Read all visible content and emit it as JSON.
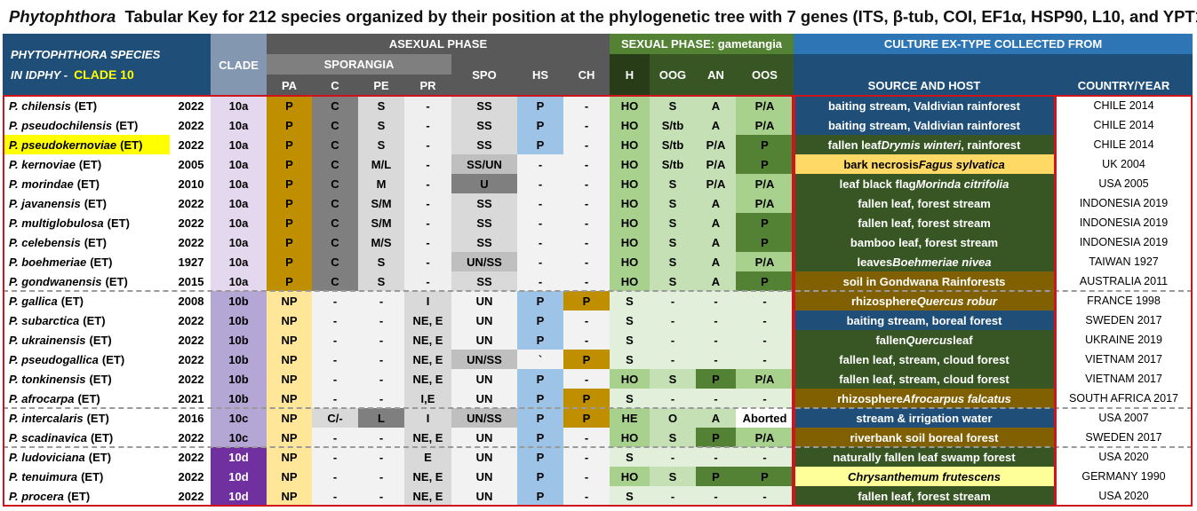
{
  "title": {
    "genus": "Phytophthora",
    "rest": "Tabular Key for 212 species organized by their position at the phylogenetic tree with 7 genes (ITS, β-tub, COI, EF1α, HSP90, L10, and YPT1)"
  },
  "header": {
    "species_line1": "PHYTOPHTHORA SPECIES",
    "species_line2_prefix": "IN IDPHY -",
    "species_clade": "CLADE 10",
    "clade": "CLADE",
    "asexual": "ASEXUAL PHASE",
    "sporangia": "SPORANGIA",
    "sexual": "SEXUAL PHASE: gametangia",
    "culture": "CULTURE EX-TYPE COLLECTED FROM",
    "source_host": "SOURCE AND HOST",
    "country_year": "COUNTRY/YEAR",
    "columns": [
      "PA",
      "C",
      "PE",
      "PR",
      "SPO",
      "HS",
      "CH",
      "H",
      "OOG",
      "AN",
      "OOS"
    ]
  },
  "colors": {
    "dark_blue": "#1f4e79",
    "dark_green": "#375623",
    "brown": "#806000",
    "gold": "#bf8f00",
    "light_yellow": "#ffe699",
    "red_border": "#d0141c"
  },
  "rows": [
    {
      "species": "P. chilensis",
      "tag": "(ET)",
      "year": "2022",
      "clade": "10a",
      "pa": "P",
      "c": "C",
      "pe": "S",
      "pr": "-",
      "spo": "SS",
      "hs": "P",
      "ch": "-",
      "h": "HO",
      "oog": "S",
      "an": "A",
      "oos": "P/A",
      "source": "baiting stream, Valdivian rainforest",
      "country": "CHILE 2014"
    },
    {
      "species": "P. pseudochilensis",
      "tag": "(ET)",
      "year": "2022",
      "clade": "10a",
      "pa": "P",
      "c": "C",
      "pe": "S",
      "pr": "-",
      "spo": "SS",
      "hs": "P",
      "ch": "-",
      "h": "HO",
      "oog": "S/tb",
      "an": "A",
      "oos": "P/A",
      "source": "baiting stream, Valdivian rainforest",
      "country": "CHILE 2014"
    },
    {
      "species": "P. pseudokernoviae",
      "tag": "(ET)",
      "year": "2022",
      "clade": "10a",
      "pa": "P",
      "c": "C",
      "pe": "S",
      "pr": "-",
      "spo": "SS",
      "hs": "P",
      "ch": "-",
      "h": "HO",
      "oog": "S/tb",
      "an": "P/A",
      "oos": "P",
      "source": "fallen leaf Drymis winteri , rainforest",
      "country": "CHILE 2014"
    },
    {
      "species": "P. kernoviae",
      "tag": "(ET)",
      "year": "2005",
      "clade": "10a",
      "pa": "P",
      "c": "C",
      "pe": "M/L",
      "pr": "-",
      "spo": "SS/UN",
      "hs": "-",
      "ch": "-",
      "h": "HO",
      "oog": "S/tb",
      "an": "P/A",
      "oos": "P",
      "source": "bark necrosis Fagus sylvatica",
      "country": "UK 2004"
    },
    {
      "species": "P. morindae",
      "tag": "(ET)",
      "year": "2010",
      "clade": "10a",
      "pa": "P",
      "c": "C",
      "pe": "M",
      "pr": "-",
      "spo": "U",
      "hs": "-",
      "ch": "-",
      "h": "HO",
      "oog": "S",
      "an": "P/A",
      "oos": "P/A",
      "source": "leaf black flag Morinda citrifolia",
      "country": "USA 2005"
    },
    {
      "species": "P. javanensis",
      "tag": "(ET)",
      "year": "2022",
      "clade": "10a",
      "pa": "P",
      "c": "C",
      "pe": "S/M",
      "pr": "-",
      "spo": "SS",
      "hs": "-",
      "ch": "-",
      "h": "HO",
      "oog": "S",
      "an": "A",
      "oos": "P/A",
      "source": "fallen leaf, forest stream",
      "country": "INDONESIA 2019"
    },
    {
      "species": "P. multiglobulosa",
      "tag": "(ET)",
      "year": "2022",
      "clade": "10a",
      "pa": "P",
      "c": "C",
      "pe": "S/M",
      "pr": "-",
      "spo": "SS",
      "hs": "-",
      "ch": "-",
      "h": "HO",
      "oog": "S",
      "an": "A",
      "oos": "P",
      "source": "fallen leaf, forest stream",
      "country": "INDONESIA 2019"
    },
    {
      "species": "P. celebensis",
      "tag": "(ET)",
      "year": "2022",
      "clade": "10a",
      "pa": "P",
      "c": "C",
      "pe": "M/S",
      "pr": "-",
      "spo": "SS",
      "hs": "-",
      "ch": "-",
      "h": "HO",
      "oog": "S",
      "an": "A",
      "oos": "P",
      "source": "bamboo leaf, forest stream",
      "country": "INDONESIA 2019"
    },
    {
      "species": "P. boehmeriae",
      "tag": "(ET)",
      "year": "1927",
      "clade": "10a",
      "pa": "P",
      "c": "C",
      "pe": "S",
      "pr": "-",
      "spo": "UN/SS",
      "hs": "-",
      "ch": "-",
      "h": "HO",
      "oog": "S",
      "an": "A",
      "oos": "P/A",
      "source": "leaves Boehmeriae nivea",
      "country": "TAIWAN 1927"
    },
    {
      "species": "P. gondwanensis",
      "tag": "(ET)",
      "year": "2015",
      "clade": "10a",
      "pa": "P",
      "c": "C",
      "pe": "S",
      "pr": "-",
      "spo": "SS",
      "hs": "-",
      "ch": "-",
      "h": "HO",
      "oog": "S",
      "an": "A",
      "oos": "P",
      "source": "soil in Gondwana Rainforests",
      "country": "AUSTRALIA 2011"
    },
    {
      "species": "P. gallica",
      "tag": "(ET)",
      "year": "2008",
      "clade": "10b",
      "pa": "NP",
      "c": "-",
      "pe": "-",
      "pr": "I",
      "spo": "UN",
      "hs": "P",
      "ch": "P",
      "h": "S",
      "oog": "-",
      "an": "-",
      "oos": "-",
      "source": "rhizosphere Quercus robur",
      "country": "FRANCE 1998"
    },
    {
      "species": "P. subarctica",
      "tag": "(ET)",
      "year": "2022",
      "clade": "10b",
      "pa": "NP",
      "c": "-",
      "pe": "-",
      "pr": "NE, E",
      "spo": "UN",
      "hs": "P",
      "ch": "-",
      "h": "S",
      "oog": "-",
      "an": "-",
      "oos": "-",
      "source": "baiting stream, boreal forest",
      "country": "SWEDEN 2017"
    },
    {
      "species": "P. ukrainensis",
      "tag": "(ET)",
      "year": "2022",
      "clade": "10b",
      "pa": "NP",
      "c": "-",
      "pe": "-",
      "pr": "NE, E",
      "spo": "UN",
      "hs": "P",
      "ch": "-",
      "h": "S",
      "oog": "-",
      "an": "-",
      "oos": "-",
      "source": "fallen Quercus leaf",
      "country": "UKRAINE 2019"
    },
    {
      "species": "P. pseudogallica",
      "tag": "(ET)",
      "year": "2022",
      "clade": "10b",
      "pa": "NP",
      "c": "-",
      "pe": "-",
      "pr": "NE, E",
      "spo": "UN/SS",
      "hs": "`",
      "ch": "P",
      "h": "S",
      "oog": "-",
      "an": "-",
      "oos": "-",
      "source": "fallen leaf, stream, cloud forest",
      "country": "VIETNAM 2017"
    },
    {
      "species": "P. tonkinensis",
      "tag": "(ET)",
      "year": "2022",
      "clade": "10b",
      "pa": "NP",
      "c": "-",
      "pe": "-",
      "pr": "NE, E",
      "spo": "UN",
      "hs": "P",
      "ch": "-",
      "h": "HO",
      "oog": "S",
      "an": "P",
      "oos": "P/A",
      "source": "fallen leaf, stream, cloud forest",
      "country": "VIETNAM 2017"
    },
    {
      "species": "P. afrocarpa",
      "tag": "(ET)",
      "year": "2021",
      "clade": "10b",
      "pa": "NP",
      "c": "-",
      "pe": "-",
      "pr": "I,E",
      "spo": "UN",
      "hs": "P",
      "ch": "P",
      "h": "S",
      "oog": "-",
      "an": "-",
      "oos": "-",
      "source": "rhizosphere Afrocarpus falcatus",
      "country": "SOUTH AFRICA 2017"
    },
    {
      "species": "P. intercalaris",
      "tag": "(ET)",
      "year": "2016",
      "clade": "10c",
      "pa": "NP",
      "c": "C/-",
      "pe": "L",
      "pr": "I",
      "spo": "UN/SS",
      "hs": "P",
      "ch": "P",
      "h": "HE",
      "oog": "O",
      "an": "A",
      "oos": "Aborted",
      "source": "stream & irrigation water",
      "country": "USA 2007"
    },
    {
      "species": "P. scadinavica",
      "tag": "(ET)",
      "year": "2022",
      "clade": "10c",
      "pa": "NP",
      "c": "-",
      "pe": "-",
      "pr": "NE, E",
      "spo": "UN",
      "hs": "P",
      "ch": "-",
      "h": "HO",
      "oog": "S",
      "an": "P",
      "oos": "P/A",
      "source": "riverbank soil boreal forest",
      "country": "SWEDEN 2017"
    },
    {
      "species": "P. ludoviciana",
      "tag": "(ET)",
      "year": "2022",
      "clade": "10d",
      "pa": "NP",
      "c": "-",
      "pe": "-",
      "pr": "E",
      "spo": "UN",
      "hs": "P",
      "ch": "-",
      "h": "S",
      "oog": "-",
      "an": "-",
      "oos": "-",
      "source": "naturally fallen leaf swamp forest",
      "country": "USA 2020"
    },
    {
      "species": "P. tenuimura",
      "tag": "(ET)",
      "year": "2022",
      "clade": "10d",
      "pa": "NP",
      "c": "-",
      "pe": "-",
      "pr": "NE, E",
      "spo": "UN",
      "hs": "P",
      "ch": "-",
      "h": "HO",
      "oog": "S",
      "an": "P",
      "oos": "P",
      "source": "Chrysanthemum frutescens",
      "country": "GERMANY 1990"
    },
    {
      "species": "P. procera",
      "tag": "(ET)",
      "year": "2022",
      "clade": "10d",
      "pa": "NP",
      "c": "-",
      "pe": "-",
      "pr": "NE, E",
      "spo": "UN",
      "hs": "P",
      "ch": "-",
      "h": "S",
      "oog": "-",
      "an": "-",
      "oos": "-",
      "source": "fallen leaf, forest stream",
      "country": "USA 2020"
    }
  ]
}
